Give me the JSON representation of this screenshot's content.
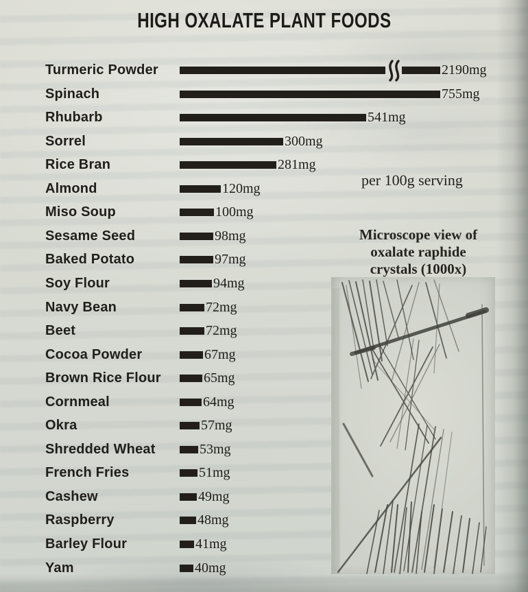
{
  "page": {
    "title": "HIGH OXALATE PLANT FOODS",
    "serving_note": "per 100g serving",
    "microscope_caption_lines": [
      "Microscope view of",
      "oxalate raphide",
      "crystals (1000x)"
    ],
    "microscope_image_alt": "Grayscale micrograph of needle-shaped oxalate raphide crystals"
  },
  "chart_data": {
    "type": "bar",
    "orientation": "horizontal",
    "title": "HIGH OXALATE PLANT FOODS",
    "unit": "mg",
    "note": "per 100g serving",
    "categories": [
      "Turmeric Powder",
      "Spinach",
      "Rhubarb",
      "Sorrel",
      "Rice Bran",
      "Almond",
      "Miso Soup",
      "Sesame Seed",
      "Baked Potato",
      "Soy Flour",
      "Navy Bean",
      "Beet",
      "Cocoa Powder",
      "Brown Rice Flour",
      "Cornmeal",
      "Okra",
      "Shredded Wheat",
      "French Fries",
      "Cashew",
      "Raspberry",
      "Barley Flour",
      "Yam"
    ],
    "values": [
      2190,
      755,
      541,
      300,
      281,
      120,
      100,
      98,
      97,
      94,
      72,
      72,
      67,
      65,
      64,
      57,
      53,
      51,
      49,
      48,
      41,
      40
    ],
    "labels": [
      "2190mg",
      "755mg",
      "541mg",
      "300mg",
      "281mg",
      "120mg",
      "100mg",
      "98mg",
      "97mg",
      "94mg",
      "72mg",
      "72mg",
      "67mg",
      "65mg",
      "64mg",
      "57mg",
      "53mg",
      "51mg",
      "49mg",
      "48mg",
      "41mg",
      "40mg"
    ],
    "axis_break": {
      "category": "Turmeric Powder",
      "note": "bar drawn truncated with a break squiggle because 2190mg exceeds the scale"
    },
    "xlim": [
      0,
      800
    ],
    "grid": false,
    "legend": false,
    "bar_color": "#221f1b",
    "text_color": "#201e1a",
    "background_color": "#d8dbd3"
  }
}
